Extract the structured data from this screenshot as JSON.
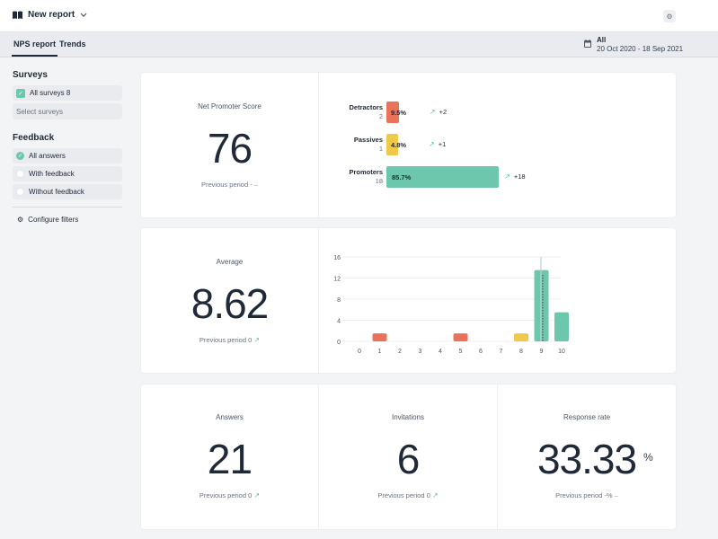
{
  "header": {
    "title": "New report",
    "icon": "book-icon",
    "settings_icon": "gear-icon"
  },
  "tabs": [
    {
      "label": "NPS report",
      "active": true
    },
    {
      "label": "Trends",
      "active": false
    }
  ],
  "date_filter": {
    "label": "All",
    "range": "20 Oct 2020 - 18 Sep 2021",
    "icon": "calendar-icon"
  },
  "sidebar": {
    "surveys_heading": "Surveys",
    "surveys_selected": "All surveys 8",
    "select_placeholder": "Select surveys",
    "feedback_heading": "Feedback",
    "feedback_options": [
      {
        "label": "All answers",
        "selected": true
      },
      {
        "label": "With feedback",
        "selected": false
      },
      {
        "label": "Without feedback",
        "selected": false
      }
    ],
    "configure_label": "Configure filters"
  },
  "nps": {
    "label": "Net Promoter Score",
    "value": "76",
    "previous": "Previous period -",
    "previous_trend": "–",
    "breakdown": [
      {
        "name": "Detractors",
        "count": "2",
        "pct_label": "9.5%",
        "percent": 9.5,
        "delta": "+2",
        "color": "#e8725a"
      },
      {
        "name": "Passives",
        "count": "1",
        "pct_label": "4.8%",
        "percent": 4.8,
        "delta": "+1",
        "color": "#f0c94a"
      },
      {
        "name": "Promoters",
        "count": "18",
        "pct_label": "85.7%",
        "percent": 85.7,
        "delta": "+18",
        "color": "#6cc7ad"
      }
    ]
  },
  "average": {
    "label": "Average",
    "value": "8.62",
    "previous": "Previous period 0"
  },
  "chart_data": {
    "type": "bar",
    "categories": [
      "0",
      "1",
      "2",
      "3",
      "4",
      "5",
      "6",
      "7",
      "8",
      "9",
      "10"
    ],
    "values": [
      0,
      1,
      0,
      0,
      0,
      1,
      0,
      0,
      1,
      13,
      5
    ],
    "colors": [
      "#e8725a",
      "#e8725a",
      "#e8725a",
      "#e8725a",
      "#e8725a",
      "#e8725a",
      "#e8725a",
      "#f0c94a",
      "#f0c94a",
      "#6cc7ad",
      "#6cc7ad"
    ],
    "yticks": [
      "0",
      "4",
      "8",
      "12",
      "16"
    ],
    "ylim": [
      0,
      16
    ],
    "average_marker": 8.62,
    "grid": true
  },
  "answers": {
    "label": "Answers",
    "value": "21",
    "previous": "Previous period 0"
  },
  "invitations": {
    "label": "Invitations",
    "value": "6",
    "previous": "Previous period 0"
  },
  "response_rate": {
    "label": "Response rate",
    "value": "33.33",
    "unit": "%",
    "previous": "Previous period -%",
    "previous_trend": "–"
  }
}
